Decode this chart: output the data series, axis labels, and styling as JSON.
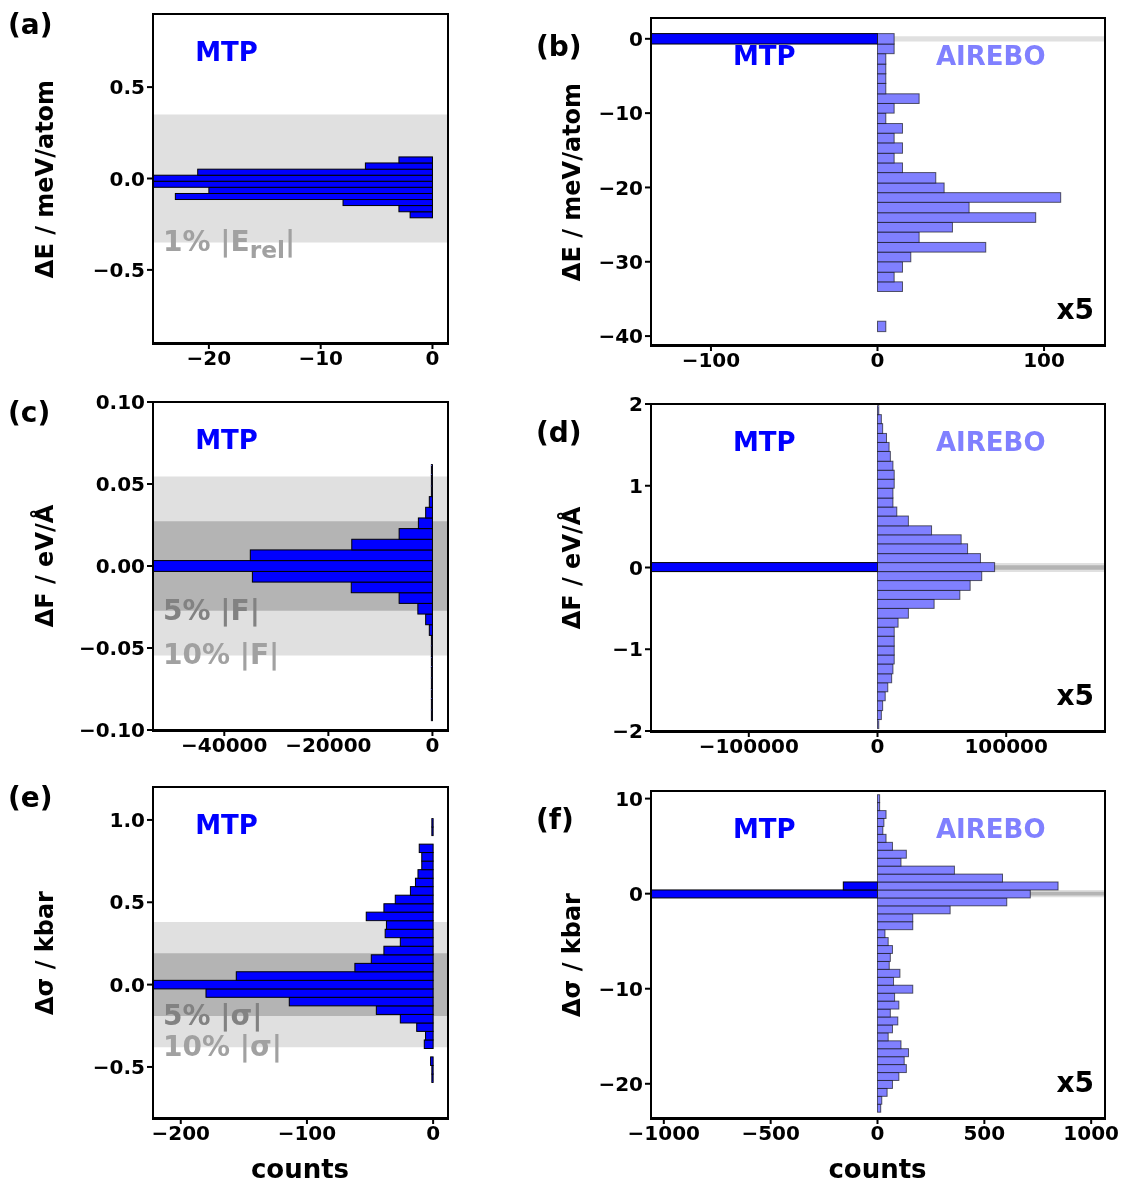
{
  "chart_data": [
    {
      "type": "histogram",
      "orientation": "horizontal",
      "title": "(a)",
      "ylabel": "ΔE / meV/atom",
      "xlim": [
        -25,
        1.3
      ],
      "xticks": [
        -20,
        -10,
        0
      ],
      "ylim": [
        -0.9,
        0.9
      ],
      "yticks": [
        {
          "value": -0.5,
          "label": "−0.5"
        },
        {
          "value": 0,
          "label": "0.0"
        },
        {
          "value": 0.5,
          "label": "0.5"
        }
      ],
      "bands": [
        {
          "axis": "y",
          "from": -0.35,
          "to": 0.35,
          "label": "1% |E$_{rel}$|",
          "color": "#e0e0e0"
        }
      ],
      "bins": [
        -0.215,
        -0.182,
        -0.148,
        -0.115,
        -0.082,
        -0.048,
        -0.015,
        0.018,
        0.051,
        0.085,
        0.118
      ],
      "series": [
        {
          "name": "MTP",
          "color": "#0000ff",
          "values": [
            -2,
            -3,
            -8,
            -23,
            -20,
            -25,
            -25,
            -21,
            -6,
            -3
          ]
        }
      ]
    },
    {
      "type": "histogram",
      "orientation": "horizontal",
      "title": "(b)",
      "ylabel": "ΔE / meV/atom",
      "annotations": [
        "x5"
      ],
      "xlim": [
        -136,
        136
      ],
      "xticks": [
        -100,
        0,
        100
      ],
      "ylim": [
        -41.2,
        2.8
      ],
      "yticks": [
        -40,
        -30,
        -20,
        -10,
        0
      ],
      "bands": [
        {
          "axis": "y",
          "from": -0.35,
          "to": 0.35,
          "color": "#e0e0e0"
        }
      ],
      "bins": [
        -39.4,
        -38.0,
        -34.0,
        -32.7,
        -31.4,
        -30.0,
        -28.7,
        -27.4,
        -26.0,
        -24.7,
        -23.4,
        -22.0,
        -20.7,
        -19.4,
        -18.0,
        -16.7,
        -15.4,
        -14.0,
        -12.7,
        -11.4,
        -10.0,
        -8.7,
        -7.4,
        -6.0,
        -4.7,
        -3.4,
        -2.0,
        -0.7,
        0.7
      ],
      "series": [
        {
          "name": "MTP",
          "color": "#0000ff",
          "values": [
            null,
            null,
            null,
            null,
            null,
            null,
            null,
            null,
            null,
            null,
            null,
            null,
            null,
            null,
            null,
            null,
            null,
            null,
            null,
            null,
            null,
            null,
            null,
            null,
            null,
            null,
            null,
            -136
          ]
        },
        {
          "name": "AIREBO",
          "color": "#8080ff",
          "values": [
            5,
            0,
            15,
            10,
            15,
            20,
            65,
            25,
            45,
            95,
            55,
            110,
            40,
            35,
            15,
            10,
            15,
            10,
            15,
            5,
            10,
            25,
            5,
            5,
            5,
            5,
            10,
            10
          ]
        }
      ]
    },
    {
      "type": "histogram",
      "orientation": "horizontal",
      "title": "(c)",
      "ylabel": "ΔF / eV/Å",
      "xlim": [
        -53700,
        2800
      ],
      "xticks": [
        -40000,
        -20000,
        0
      ],
      "ylim": [
        -0.1,
        0.1
      ],
      "yticks": [
        {
          "value": -0.1,
          "label": "−0.10"
        },
        {
          "value": -0.05,
          "label": "−0.05"
        },
        {
          "value": 0,
          "label": "0.00"
        },
        {
          "value": 0.05,
          "label": "0.05"
        },
        {
          "value": 0.1,
          "label": "0.10"
        }
      ],
      "bands": [
        {
          "axis": "y",
          "from": -0.0545,
          "to": 0.0545,
          "label": "10% |F|",
          "color": "#e0e0e0"
        },
        {
          "axis": "y",
          "from": -0.0273,
          "to": 0.0273,
          "label": "5% |F|",
          "color": "#b4b4b4"
        }
      ],
      "bins": [
        -0.0943,
        -0.0878,
        -0.0813,
        -0.0748,
        -0.0683,
        -0.0618,
        -0.0553,
        -0.0488,
        -0.0423,
        -0.0358,
        -0.0293,
        -0.0228,
        -0.0163,
        -0.0098,
        -0.0033,
        0.0033,
        0.0098,
        0.0163,
        0.0228,
        0.0293,
        0.0358,
        0.0423,
        0.0488,
        0.0553,
        0.0618
      ],
      "series": [
        {
          "name": "MTP",
          "color": "#0000ff",
          "values": [
            -200,
            -200,
            -200,
            -200,
            -200,
            -200,
            -200,
            -200,
            -600,
            -1300,
            -2800,
            -6400,
            -15600,
            -34600,
            -53700,
            -35000,
            -15500,
            -6400,
            -2700,
            -1300,
            -600,
            -200,
            -200,
            -200
          ]
        }
      ]
    },
    {
      "type": "histogram",
      "orientation": "horizontal",
      "title": "(d)",
      "ylabel": "ΔF / eV/Å",
      "annotations": [
        "x5"
      ],
      "xlim": [
        -176000,
        176000
      ],
      "xticks": [
        -100000,
        0,
        100000
      ],
      "ylim": [
        -2,
        2
      ],
      "yticks": [
        -2,
        -1,
        0,
        1,
        2
      ],
      "bands": [
        {
          "axis": "y",
          "from": -0.0545,
          "to": 0.0545,
          "color": "#e0e0e0"
        },
        {
          "axis": "y",
          "from": -0.0273,
          "to": 0.0273,
          "color": "#b4b4b4"
        }
      ],
      "bins": [
        -1.97,
        -1.86,
        -1.75,
        -1.63,
        -1.52,
        -1.41,
        -1.3,
        -1.18,
        -1.07,
        -0.96,
        -0.84,
        -0.73,
        -0.62,
        -0.5,
        -0.39,
        -0.28,
        -0.16,
        -0.05,
        0.06,
        0.17,
        0.29,
        0.4,
        0.51,
        0.63,
        0.74,
        0.85,
        0.97,
        1.08,
        1.19,
        1.3,
        1.42,
        1.53,
        1.64,
        1.76,
        1.87,
        1.98
      ],
      "series": [
        {
          "name": "MTP",
          "color": "#0000ff",
          "values": [
            null,
            null,
            null,
            null,
            null,
            null,
            null,
            null,
            null,
            null,
            null,
            null,
            null,
            null,
            null,
            null,
            null,
            -176000,
            null,
            null,
            null,
            null,
            null,
            null,
            null,
            null,
            null,
            null,
            null,
            null,
            null,
            null,
            null,
            null,
            null
          ]
        },
        {
          "name": "AIREBO",
          "color": "#8080ff",
          "values": [
            1000,
            3000,
            4000,
            6000,
            8000,
            11000,
            12000,
            13000,
            13000,
            13000,
            13000,
            16000,
            24000,
            44000,
            64000,
            72000,
            81000,
            91000,
            80000,
            70000,
            65000,
            42000,
            24000,
            15000,
            12000,
            12000,
            13000,
            13000,
            12000,
            10000,
            9000,
            7000,
            4000,
            3000,
            1000
          ]
        }
      ]
    },
    {
      "type": "histogram",
      "orientation": "horizontal",
      "title": "(e)",
      "ylabel": "Δσ / kbar",
      "xlabel": "counts",
      "xlim": [
        -222,
        11
      ],
      "xticks": [
        -200,
        -100,
        0
      ],
      "ylim": [
        -0.81,
        1.2
      ],
      "yticks": [
        {
          "value": -0.5,
          "label": "−0.5"
        },
        {
          "value": 0,
          "label": "0.0"
        },
        {
          "value": 0.5,
          "label": "0.5"
        },
        {
          "value": 1,
          "label": "1.0"
        }
      ],
      "bands": [
        {
          "axis": "y",
          "from": -0.38,
          "to": 0.38,
          "label": "10% |σ|",
          "color": "#e0e0e0"
        },
        {
          "axis": "y",
          "from": -0.19,
          "to": 0.19,
          "label": "5% |σ|",
          "color": "#b4b4b4"
        }
      ],
      "bins": [
        -0.594,
        -0.543,
        -0.491,
        -0.439,
        -0.388,
        -0.336,
        -0.284,
        -0.233,
        -0.181,
        -0.129,
        -0.077,
        -0.026,
        0.026,
        0.078,
        0.129,
        0.181,
        0.233,
        0.285,
        0.336,
        0.388,
        0.44,
        0.491,
        0.543,
        0.595,
        0.646,
        0.698,
        0.75,
        0.802,
        0.853,
        0.905,
        0.957,
        1.008
      ],
      "series": [
        {
          "name": "MTP",
          "color": "#0000ff",
          "values": [
            -1,
            -1,
            -2,
            0,
            -7,
            -6,
            -13,
            -26,
            -45,
            -114,
            -180,
            -222,
            -156,
            -62,
            -49,
            -39,
            -26,
            -38,
            -37,
            -53,
            -39,
            -30,
            -18,
            -14,
            -12,
            -9,
            -9,
            -11,
            0,
            -1,
            -1
          ]
        }
      ]
    },
    {
      "type": "histogram",
      "orientation": "horizontal",
      "title": "(f)",
      "ylabel": "Δσ / kbar",
      "xlabel": "counts",
      "annotations": [
        "x5"
      ],
      "xlim": [
        -1060,
        1060
      ],
      "xticks": [
        -1000,
        -500,
        0,
        500,
        1000
      ],
      "ylim": [
        -23.6,
        10.8
      ],
      "yticks": [
        -20,
        -10,
        0,
        10
      ],
      "bands": [
        {
          "axis": "y",
          "from": -0.38,
          "to": 0.38,
          "color": "#e0e0e0"
        },
        {
          "axis": "y",
          "from": -0.19,
          "to": 0.19,
          "color": "#b4b4b4"
        }
      ],
      "bins": [
        -22.99,
        -22.15,
        -21.32,
        -20.49,
        -19.65,
        -18.82,
        -17.98,
        -17.15,
        -16.31,
        -15.48,
        -14.64,
        -13.81,
        -12.97,
        -12.14,
        -11.3,
        -10.47,
        -9.63,
        -8.8,
        -7.96,
        -7.13,
        -6.29,
        -5.46,
        -4.62,
        -3.79,
        -2.95,
        -2.12,
        -1.28,
        -0.45,
        0.39,
        1.23,
        2.06,
        2.9,
        3.73,
        4.57,
        5.4,
        6.24,
        7.07,
        7.91,
        8.74,
        9.58,
        10.41
      ],
      "series": [
        {
          "name": "MTP",
          "color": "#0000ff",
          "values": [
            null,
            null,
            null,
            null,
            null,
            null,
            null,
            null,
            null,
            null,
            null,
            null,
            null,
            null,
            null,
            null,
            null,
            null,
            null,
            null,
            null,
            null,
            null,
            null,
            null,
            null,
            null,
            -1060,
            -160,
            null,
            null,
            null,
            null,
            null,
            null,
            null,
            null,
            null,
            null,
            null
          ]
        },
        {
          "name": "AIREBO",
          "color": "#8080ff",
          "values": [
            15,
            20,
            45,
            70,
            100,
            135,
            125,
            145,
            110,
            50,
            70,
            95,
            60,
            100,
            80,
            165,
            75,
            105,
            55,
            60,
            70,
            50,
            35,
            165,
            165,
            340,
            605,
            715,
            845,
            585,
            360,
            110,
            135,
            70,
            40,
            25,
            30,
            40,
            10,
            10
          ]
        }
      ]
    }
  ]
}
